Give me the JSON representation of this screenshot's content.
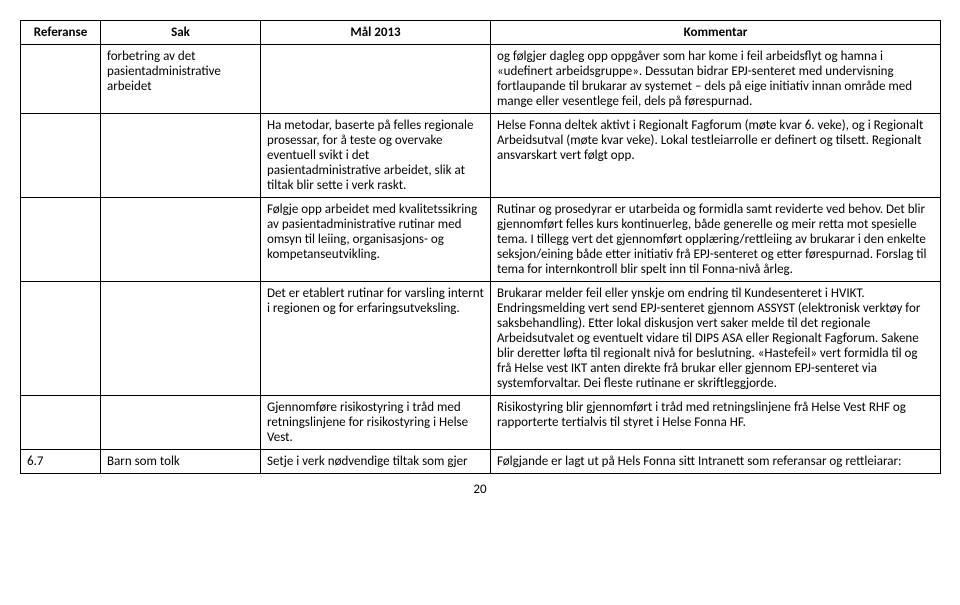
{
  "headers": {
    "ref": "Referanse",
    "sak": "Sak",
    "mal": "Mål 2013",
    "kom": "Kommentar"
  },
  "rows": [
    {
      "ref": "",
      "sak": "forbetring av det pasientadministrative arbeidet",
      "mal": "",
      "kom": "og følgjer dagleg opp oppgåver som har kome i feil arbeidsflyt og hamna i «udefinert arbeidsgruppe». Dessutan bidrar EPJ-senteret med undervisning fortlaupande til brukarar av systemet – dels på eige initiativ innan område med mange eller vesentlege feil, dels på førespurnad."
    },
    {
      "ref": "",
      "sak": "",
      "mal": "Ha metodar, baserte på felles regionale prosessar, for å teste og overvake eventuell svikt i det pasientadministrative arbeidet, slik at tiltak blir sette i verk raskt.",
      "kom": "Helse Fonna deltek aktivt i Regionalt Fagforum (møte kvar 6. veke), og i Regionalt Arbeidsutval (møte kvar veke). Lokal testleiarrolle er definert og tilsett. Regionalt ansvarskart vert følgt opp."
    },
    {
      "ref": "",
      "sak": "",
      "mal": "Følgje opp arbeidet med kvalitetssikring av pasientadministrative rutinar med omsyn til leiing, organisasjons- og kompetanseutvikling.",
      "kom": "Rutinar og prosedyrar er utarbeida og formidla samt reviderte ved behov. Det blir gjennomført felles kurs kontinuerleg, både generelle og meir retta mot spesielle tema. I tillegg vert det gjennomført opplæring/rettleiing av brukarar i den enkelte seksjon/eining både etter initiativ frå EPJ-senteret og etter førespurnad. Forslag til tema for internkontroll blir spelt inn til Fonna-nivå årleg."
    },
    {
      "ref": "",
      "sak": "",
      "mal": "Det er etablert rutinar for varsling internt i regionen og for erfaringsutveksling.",
      "kom": "Brukarar melder feil eller ynskje om endring til Kundesenteret i HVIKT. Endringsmelding vert send EPJ-senteret gjennom ASSYST (elektronisk verktøy for saksbehandling). Etter lokal diskusjon vert saker melde til det regionale Arbeidsutvalet og eventuelt vidare til DIPS ASA eller Regionalt Fagforum. Sakene blir deretter løfta til regionalt nivå for beslutning. «Hastefeil» vert formidla til og frå Helse vest IKT anten direkte frå brukar eller gjennom EPJ-senteret via systemforvaltar. Dei fleste rutinane er skriftleggjorde."
    },
    {
      "ref": "",
      "sak": "",
      "mal": "Gjennomføre risikostyring i tråd med retningslinjene for risikostyring i Helse Vest.",
      "kom": "Risikostyring blir gjennomført i tråd med retningslinjene frå Helse Vest RHF og rapporterte tertialvis til styret i Helse Fonna HF."
    },
    {
      "ref": "6.7",
      "sak": "Barn som tolk",
      "mal": "Setje i verk nødvendige tiltak som gjer",
      "kom": "Følgjande er lagt ut på Hels Fonna sitt Intranett som referansar og rettleiarar:"
    }
  ],
  "pageNumber": "20"
}
